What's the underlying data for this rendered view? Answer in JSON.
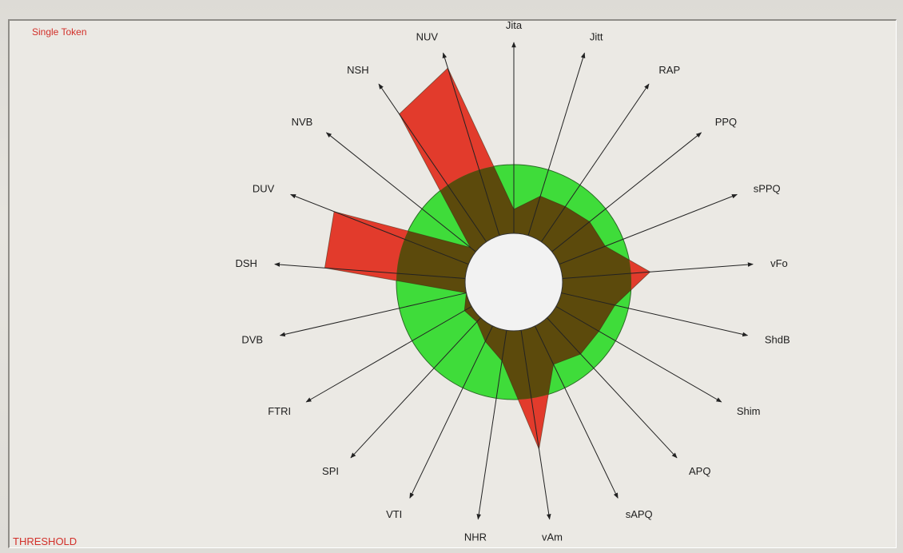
{
  "window": {
    "title": "Single Token",
    "footer": "THRESHOLD"
  },
  "colors": {
    "threshold_band": "#3fdc3a",
    "band_edge": "#2a6a25",
    "value_inside": "#5c4a0c",
    "value_exceed": "#e23b2c",
    "label_accent": "#d2302a",
    "axis": "#222222",
    "hole": "#f2f2f2"
  },
  "chart_data": {
    "type": "radar",
    "title": "",
    "axes": [
      "Jita",
      "Jitt",
      "RAP",
      "PPQ",
      "sPPQ",
      "vFo",
      "ShdB",
      "Shim",
      "APQ",
      "sAPQ",
      "vAm",
      "NHR",
      "VTI",
      "SPI",
      "FTRI",
      "DVB",
      "DSH",
      "DUV",
      "NVB",
      "NSH",
      "NUV"
    ],
    "scale": {
      "inner": 0.0,
      "threshold": 1.0,
      "max": 2.65
    },
    "series": [
      {
        "values": [
          0.35,
          0.6,
          0.62,
          0.7,
          0.72,
          1.28,
          0.8,
          0.72,
          0.72,
          0.62,
          1.75,
          0.45,
          0.25,
          0.08,
          0.12,
          0.0,
          2.05,
          2.1,
          0.1,
          2.25,
          2.55
        ]
      }
    ],
    "grid": false,
    "legend": "none"
  }
}
